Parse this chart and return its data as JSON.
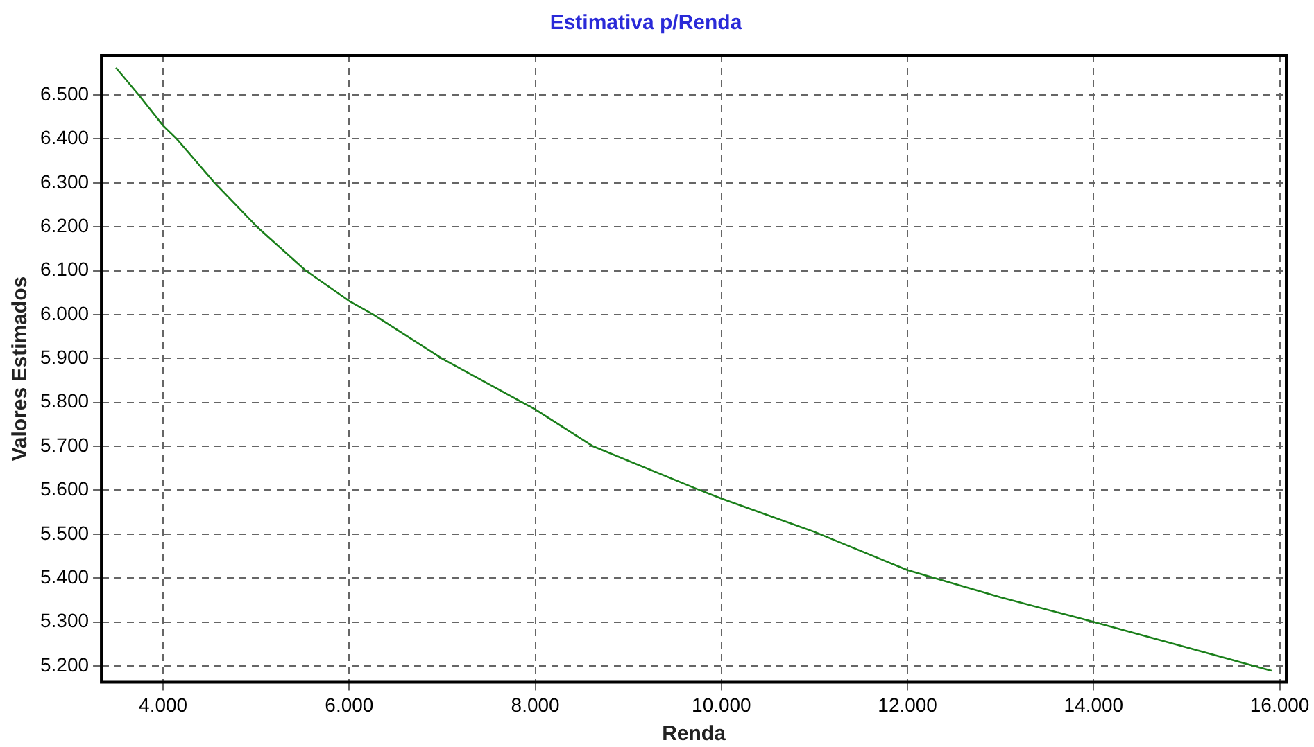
{
  "chart_data": {
    "type": "line",
    "title": "Estimativa p/Renda",
    "xlabel": "Renda",
    "ylabel": "Valores Estimados",
    "x": [
      3493,
      3738,
      4000,
      4146,
      4553,
      5008,
      5532,
      6000,
      6259,
      6996,
      8000,
      8620,
      9746,
      10000,
      11000,
      12000,
      13000,
      14000,
      15000,
      15912
    ],
    "series": [
      {
        "color": "#1a7f1a",
        "values": [
          6562,
          6500,
          6430,
          6400,
          6300,
          6200,
          6100,
          6031,
          6000,
          5900,
          5784,
          5700,
          5602,
          5581,
          5505,
          5418,
          5356,
          5300,
          5242,
          5189
        ]
      }
    ],
    "xlim": [
      3336,
      16070
    ],
    "ylim": [
      5163,
      6590
    ],
    "xticks": [
      {
        "value": 4000,
        "label": "4.000"
      },
      {
        "value": 6000,
        "label": "6.000"
      },
      {
        "value": 8000,
        "label": "8.000"
      },
      {
        "value": 10000,
        "label": "10.000"
      },
      {
        "value": 12000,
        "label": "12.000"
      },
      {
        "value": 14000,
        "label": "14.000"
      },
      {
        "value": 16000,
        "label": "16.000"
      }
    ],
    "yticks": [
      {
        "value": 5200,
        "label": "5.200"
      },
      {
        "value": 5300,
        "label": "5.300"
      },
      {
        "value": 5400,
        "label": "5.400"
      },
      {
        "value": 5500,
        "label": "5.500"
      },
      {
        "value": 5600,
        "label": "5.600"
      },
      {
        "value": 5700,
        "label": "5.700"
      },
      {
        "value": 5800,
        "label": "5.800"
      },
      {
        "value": 5900,
        "label": "5.900"
      },
      {
        "value": 6000,
        "label": "6.000"
      },
      {
        "value": 6100,
        "label": "6.100"
      },
      {
        "value": 6200,
        "label": "6.200"
      },
      {
        "value": 6300,
        "label": "6.300"
      },
      {
        "value": 6400,
        "label": "6.400"
      },
      {
        "value": 6500,
        "label": "6.500"
      }
    ],
    "grid": true,
    "line_style": "solid",
    "marker": "none",
    "legend": false
  }
}
